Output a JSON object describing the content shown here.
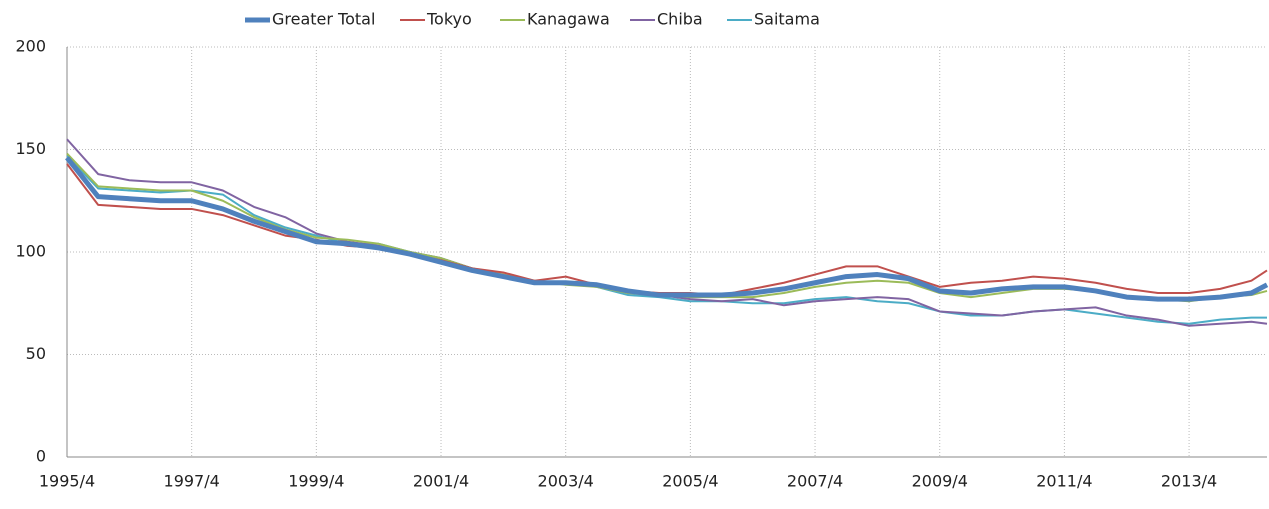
{
  "chart_data": {
    "type": "line",
    "x": [
      1995.25,
      1995.75,
      1996.25,
      1996.75,
      1997.25,
      1997.75,
      1998.25,
      1998.75,
      1999.25,
      1999.75,
      2000.25,
      2000.75,
      2001.25,
      2001.75,
      2002.25,
      2002.75,
      2003.25,
      2003.75,
      2004.25,
      2004.75,
      2005.25,
      2005.75,
      2006.25,
      2006.75,
      2007.25,
      2007.75,
      2008.25,
      2008.75,
      2009.25,
      2009.75,
      2010.25,
      2010.75,
      2011.25,
      2011.75,
      2012.25,
      2012.75,
      2013.25,
      2013.75,
      2014.25,
      2014.5
    ],
    "series": [
      {
        "name": "Greater Total",
        "color": "#4f81bd",
        "values": [
          146,
          127,
          126,
          125,
          125,
          121,
          115,
          110,
          105,
          104,
          102,
          99,
          95,
          91,
          88,
          85,
          85,
          84,
          81,
          79,
          79,
          79,
          80,
          82,
          85,
          88,
          89,
          87,
          81,
          80,
          82,
          83,
          83,
          81,
          78,
          77,
          77,
          78,
          80,
          84
        ]
      },
      {
        "name": "Tokyo",
        "color": "#c0504d",
        "values": [
          143,
          123,
          122,
          121,
          121,
          118,
          113,
          108,
          106,
          103,
          102,
          99,
          96,
          92,
          90,
          86,
          88,
          84,
          81,
          80,
          80,
          79,
          82,
          85,
          89,
          93,
          93,
          88,
          83,
          85,
          86,
          88,
          87,
          85,
          82,
          80,
          80,
          82,
          86,
          91
        ]
      },
      {
        "name": "Kanagawa",
        "color": "#9bbb59",
        "values": [
          148,
          132,
          131,
          130,
          130,
          125,
          117,
          111,
          107,
          106,
          104,
          100,
          97,
          92,
          89,
          86,
          84,
          83,
          80,
          79,
          78,
          78,
          78,
          80,
          83,
          85,
          86,
          85,
          80,
          78,
          80,
          82,
          82,
          81,
          78,
          77,
          76,
          78,
          79,
          81
        ]
      },
      {
        "name": "Chiba",
        "color": "#8064a2",
        "values": [
          155,
          138,
          135,
          134,
          134,
          130,
          122,
          117,
          109,
          105,
          103,
          100,
          97,
          92,
          88,
          85,
          85,
          84,
          80,
          79,
          77,
          76,
          77,
          74,
          76,
          77,
          78,
          77,
          71,
          70,
          69,
          71,
          72,
          73,
          69,
          67,
          64,
          65,
          66,
          65
        ]
      },
      {
        "name": "Saitama",
        "color": "#4bacc6",
        "values": [
          147,
          131,
          130,
          129,
          130,
          128,
          118,
          112,
          108,
          104,
          104,
          100,
          97,
          92,
          88,
          86,
          85,
          83,
          79,
          78,
          76,
          76,
          75,
          75,
          77,
          78,
          76,
          75,
          71,
          69,
          69,
          71,
          72,
          70,
          68,
          66,
          65,
          67,
          68,
          68
        ]
      }
    ],
    "xlim": [
      1995.25,
      2014.5
    ],
    "xticks": [
      {
        "value": 1995.25,
        "label": "1995/4"
      },
      {
        "value": 1997.25,
        "label": "1997/4"
      },
      {
        "value": 1999.25,
        "label": "1999/4"
      },
      {
        "value": 2001.25,
        "label": "2001/4"
      },
      {
        "value": 2003.25,
        "label": "2003/4"
      },
      {
        "value": 2005.25,
        "label": "2005/4"
      },
      {
        "value": 2007.25,
        "label": "2007/4"
      },
      {
        "value": 2009.25,
        "label": "2009/4"
      },
      {
        "value": 2011.25,
        "label": "2011/4"
      },
      {
        "value": 2013.25,
        "label": "2013/4"
      }
    ],
    "ylim": [
      0,
      200
    ],
    "yticks": [
      0,
      50,
      100,
      150,
      200
    ],
    "grid": true,
    "legend": "top"
  }
}
